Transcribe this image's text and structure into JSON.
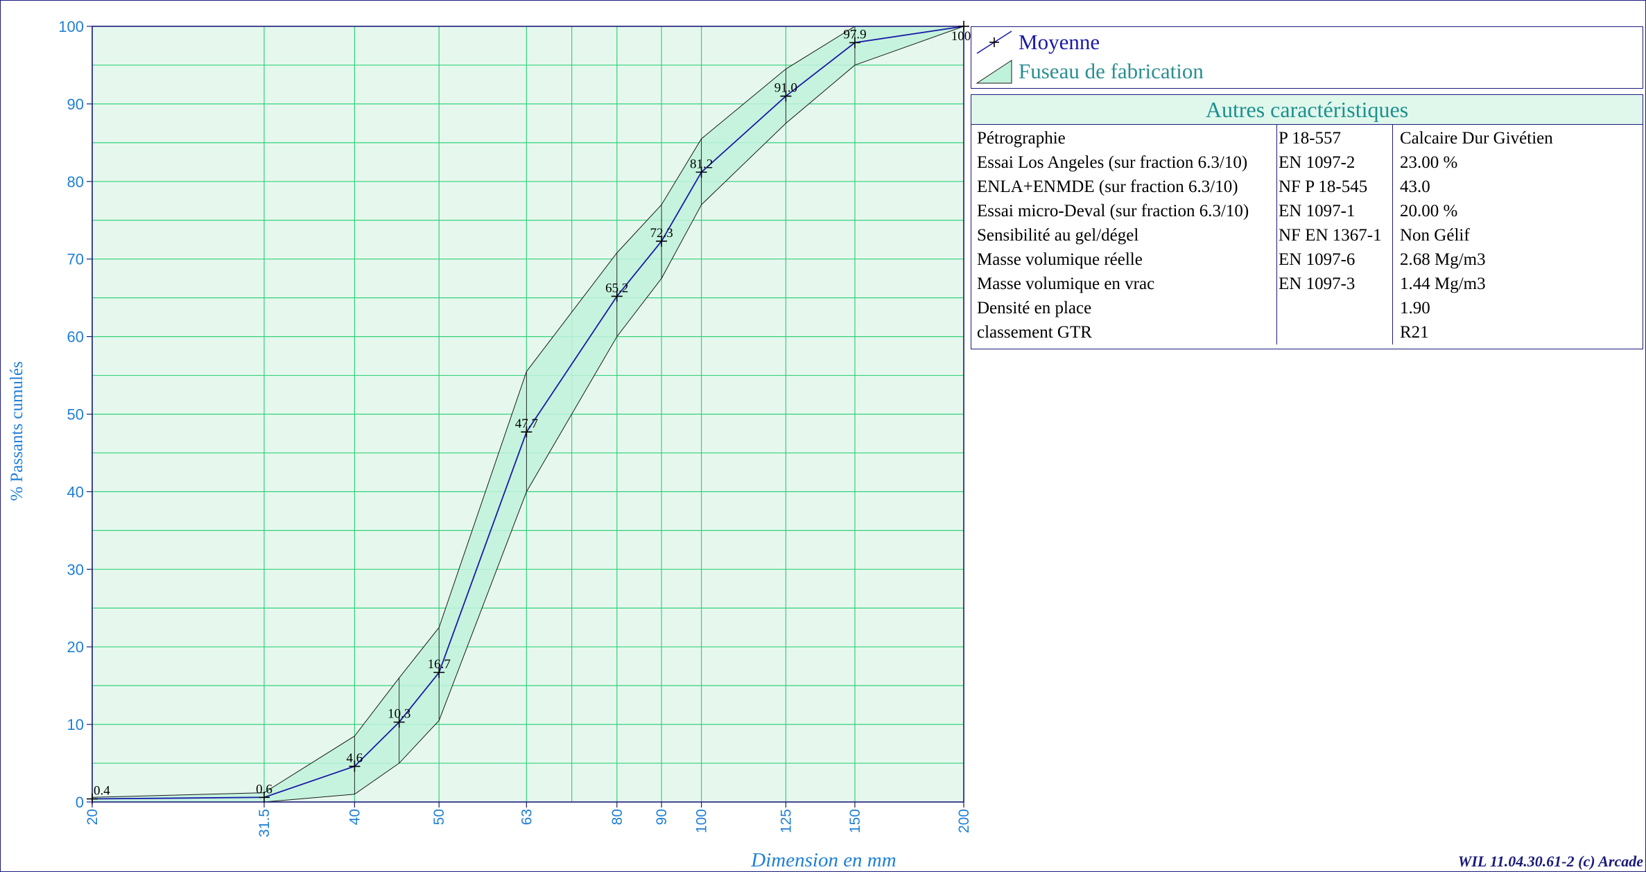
{
  "chart_data": {
    "type": "line",
    "xlabel": "Dimension en mm",
    "ylabel": "% Passants cumulés",
    "x_scale": "log",
    "xlim": [
      20,
      200
    ],
    "ylim": [
      0,
      100
    ],
    "grid": true,
    "y_ticks": [
      "0",
      "10",
      "20",
      "30",
      "40",
      "50",
      "60",
      "70",
      "80",
      "90",
      "100"
    ],
    "x_ticks": [
      "20",
      "31.5",
      "40",
      "50",
      "63",
      "80",
      "90",
      "100",
      "125",
      "150",
      "200"
    ],
    "series": [
      {
        "name": "Moyenne",
        "color": "#1a1aa8",
        "x": [
          20,
          31.5,
          40,
          45,
          50,
          63,
          80,
          90,
          100,
          125,
          150,
          200
        ],
        "y": [
          0.4,
          0.6,
          4.6,
          10.3,
          16.7,
          47.7,
          65.2,
          72.3,
          81.2,
          91.0,
          97.9,
          100
        ],
        "labels": [
          "0.4",
          "0.6",
          "4.6",
          "10.3",
          "16.7",
          "47.7",
          "65.2",
          "72.3",
          "81.2",
          "91.0",
          "97.9",
          "100"
        ]
      },
      {
        "name": "Fuseau de fabrication",
        "type": "band",
        "color": "#bff2da",
        "x": [
          20,
          31.5,
          40,
          45,
          50,
          63,
          80,
          90,
          100,
          125,
          150,
          200
        ],
        "upper": [
          0.6,
          1.2,
          8.5,
          16,
          22.5,
          55.5,
          70.8,
          77,
          85.5,
          94.5,
          100,
          100
        ],
        "lower": [
          0,
          0,
          1,
          5,
          10.5,
          40,
          60,
          67.5,
          77,
          87.5,
          95,
          100
        ]
      }
    ]
  },
  "legend": {
    "mean_label": "Moyenne",
    "band_label": "Fuseau de fabrication"
  },
  "table": {
    "title": "Autres caractéristiques",
    "rows": [
      {
        "name": "Pétrographie",
        "norm": "P 18-557",
        "value": "Calcaire Dur Givétien"
      },
      {
        "name": "Essai Los Angeles (sur fraction 6.3/10)",
        "norm": "EN 1097-2",
        "value": "23.00 %"
      },
      {
        "name": "ENLA+ENMDE (sur fraction 6.3/10)",
        "norm": "NF P 18-545",
        "value": "43.0"
      },
      {
        "name": "Essai micro-Deval (sur fraction 6.3/10)",
        "norm": "EN 1097-1",
        "value": "20.00 %"
      },
      {
        "name": "Sensibilité au gel/dégel",
        "norm": "NF EN 1367-1",
        "value": "Non Gélif"
      },
      {
        "name": "Masse volumique réelle",
        "norm": "EN 1097-6",
        "value": "2.68 Mg/m3"
      },
      {
        "name": "Masse volumique en vrac",
        "norm": "EN 1097-3",
        "value": "1.44 Mg/m3"
      },
      {
        "name": "Densité en place",
        "norm": "",
        "value": "1.90"
      },
      {
        "name": "classement GTR",
        "norm": "",
        "value": "R21"
      }
    ]
  },
  "footer": "WIL 11.04.30.61-2 (c) Arcade",
  "colors": {
    "plot_bg": "#e6f8ee",
    "grid": "#33d17a",
    "band_fill": "#bff2da",
    "band_edge": "#1a1a1a",
    "mean_line": "#1a1aa8",
    "axis_text": "#1e7fd6",
    "frame": "#1a1a7a",
    "legend_band_text": "#2a8f8f",
    "legend_mean_text": "#1a1aa8"
  }
}
